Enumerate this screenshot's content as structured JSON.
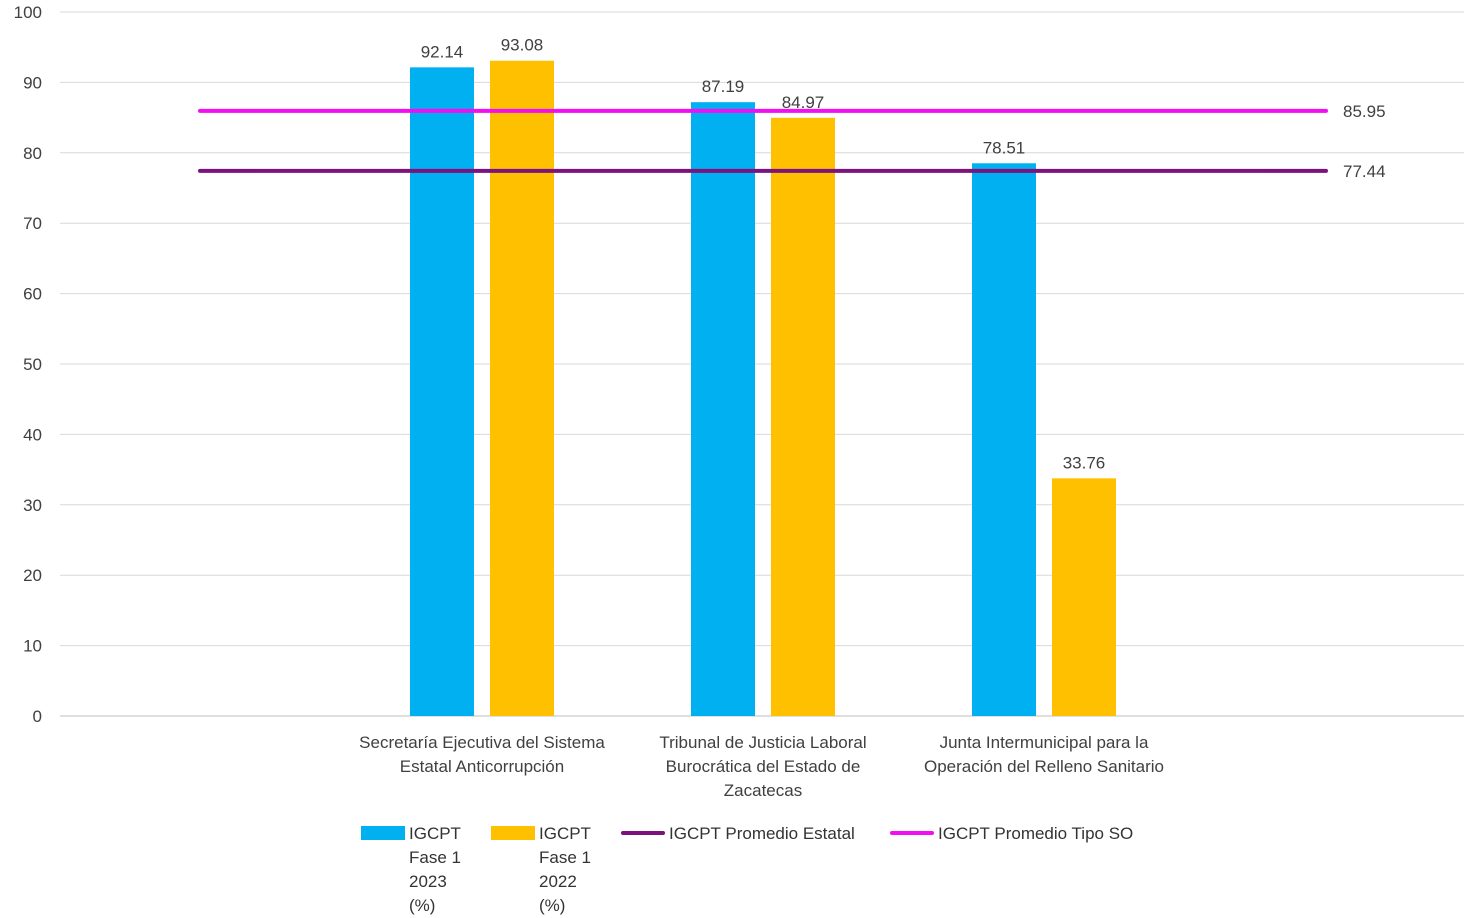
{
  "chart_data": {
    "type": "bar",
    "categories": [
      "Secretaría Ejecutiva del Sistema Estatal Anticorrupción",
      "Tribunal de Justicia Laboral Burocrática del Estado de Zacatecas",
      "Junta Intermunicipal para la Operación del Relleno Sanitario"
    ],
    "category_lines": [
      [
        "Secretaría Ejecutiva del Sistema",
        "Estatal Anticorrupción"
      ],
      [
        "Tribunal de Justicia Laboral",
        "Burocrática del Estado de",
        "Zacatecas"
      ],
      [
        "Junta Intermunicipal para la",
        "Operación del Relleno Sanitario"
      ]
    ],
    "series": [
      {
        "name": "IGCPT Fase 1 2023 (%)",
        "type": "bar",
        "color": "#00B0F0",
        "values": [
          92.14,
          87.19,
          78.51
        ]
      },
      {
        "name": "IGCPT Fase 1 2022 (%)",
        "type": "bar",
        "color": "#FFC000",
        "values": [
          93.08,
          84.97,
          33.76
        ]
      }
    ],
    "reference_lines": [
      {
        "name": "IGCPT Promedio Estatal",
        "color": "#7B127D",
        "value": 77.44
      },
      {
        "name": "IGCPT Promedio Tipo SO",
        "color": "#F10FF1",
        "value": 85.95
      }
    ],
    "yticks": [
      0,
      10,
      20,
      30,
      40,
      50,
      60,
      70,
      80,
      90,
      100
    ],
    "ylim": [
      0,
      100
    ],
    "title": "",
    "xlabel": "",
    "ylabel": "",
    "grid": true,
    "legend_position": "bottom",
    "legend": [
      {
        "label": "IGCPT Fase 1 2023 (%)",
        "kind": "box",
        "color": "#00B0F0"
      },
      {
        "label": "IGCPT Fase 1 2022 (%)",
        "kind": "box",
        "color": "#FFC000"
      },
      {
        "label": "IGCPT Promedio Estatal",
        "kind": "line",
        "color": "#7B127D"
      },
      {
        "label": "IGCPT Promedio Tipo SO",
        "kind": "line",
        "color": "#F10FF1"
      }
    ]
  }
}
